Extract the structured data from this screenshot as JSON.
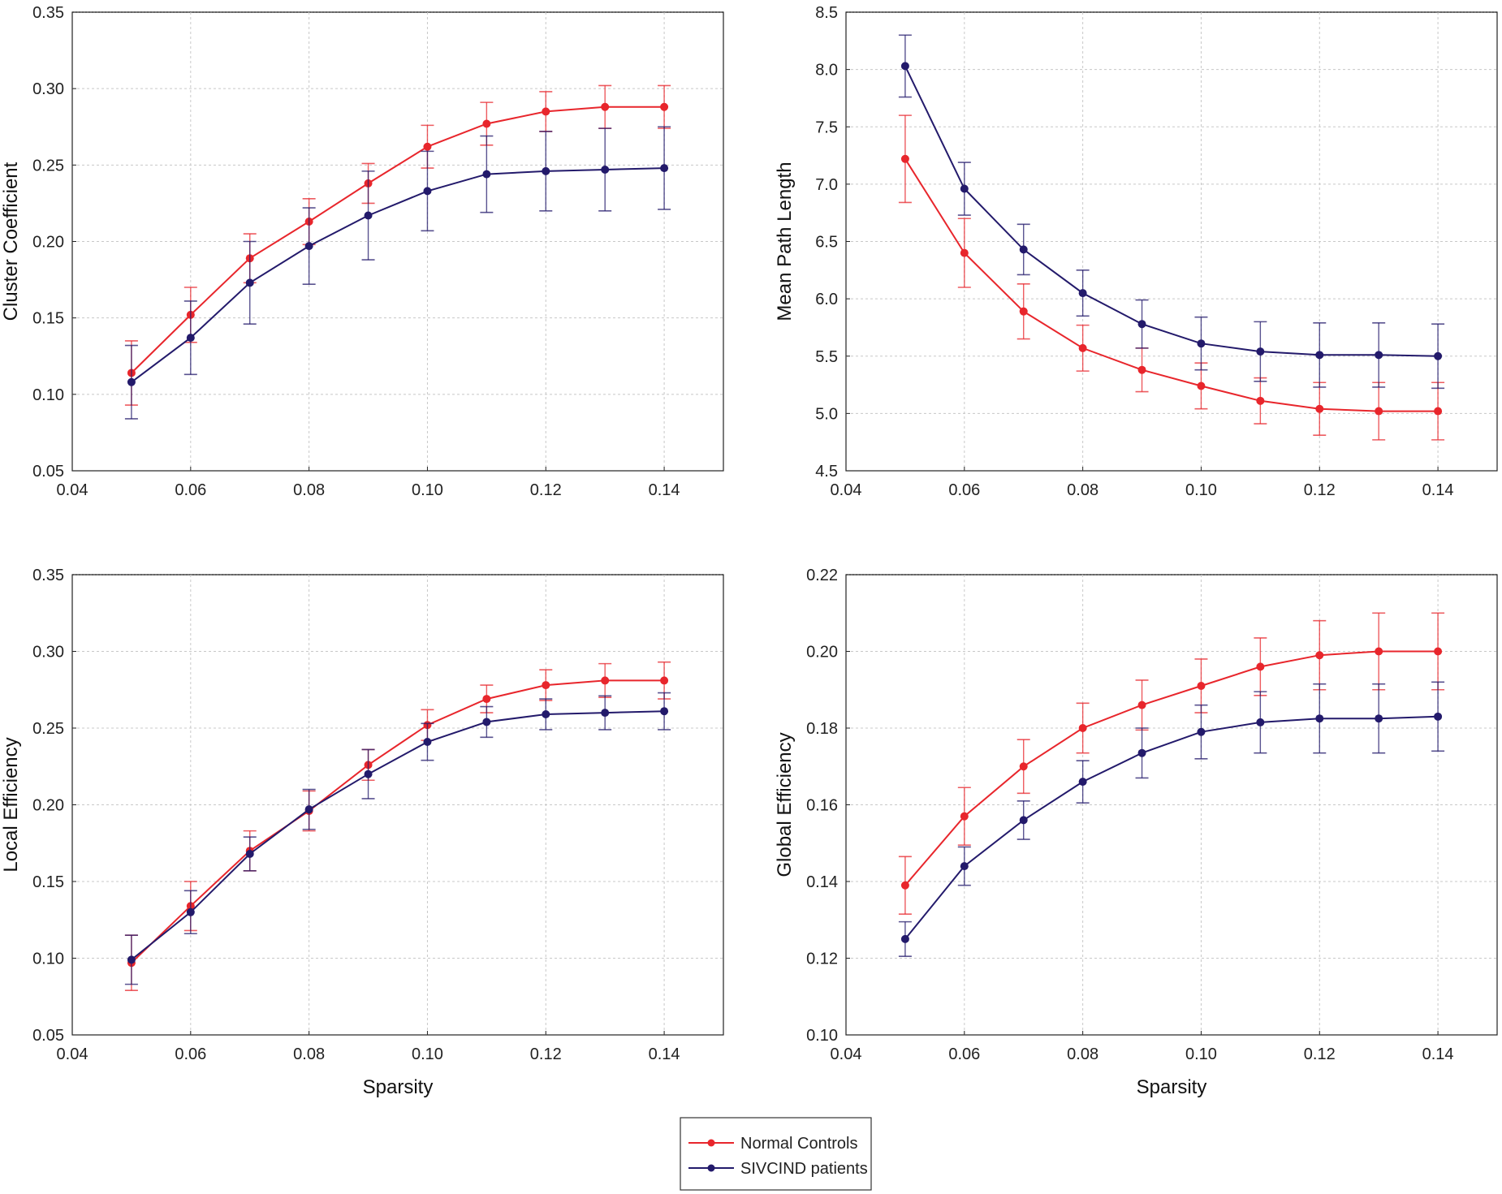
{
  "legend": {
    "items": [
      {
        "label": "Normal Controls",
        "color": "#e8262c"
      },
      {
        "label": "SIVCIND patients",
        "color": "#231a6b"
      }
    ]
  },
  "chart_data": [
    {
      "type": "line",
      "title": "",
      "xlabel": "",
      "ylabel": "Cluster Coefficient",
      "xlim": [
        0.04,
        0.15
      ],
      "ylim": [
        0.05,
        0.35
      ],
      "xticks": [
        "0.04",
        "0.06",
        "0.08",
        "0.10",
        "0.12",
        "0.14"
      ],
      "yticks": [
        "0.05",
        "0.10",
        "0.15",
        "0.20",
        "0.25",
        "0.30",
        "0.35"
      ],
      "grid": true,
      "x": [
        0.05,
        0.06,
        0.07,
        0.08,
        0.09,
        0.1,
        0.11,
        0.12,
        0.13,
        0.14
      ],
      "series": [
        {
          "name": "Normal Controls",
          "color": "#e8262c",
          "values": [
            0.114,
            0.152,
            0.189,
            0.213,
            0.238,
            0.262,
            0.277,
            0.285,
            0.288,
            0.288
          ],
          "errors": [
            0.021,
            0.018,
            0.016,
            0.015,
            0.013,
            0.014,
            0.014,
            0.013,
            0.014,
            0.014
          ]
        },
        {
          "name": "SIVCIND patients",
          "color": "#231a6b",
          "values": [
            0.108,
            0.137,
            0.173,
            0.197,
            0.217,
            0.233,
            0.244,
            0.246,
            0.247,
            0.248
          ],
          "errors": [
            0.024,
            0.024,
            0.027,
            0.025,
            0.029,
            0.026,
            0.025,
            0.026,
            0.027,
            0.027
          ]
        }
      ]
    },
    {
      "type": "line",
      "title": "",
      "xlabel": "",
      "ylabel": "Mean Path Length",
      "xlim": [
        0.04,
        0.15
      ],
      "ylim": [
        4.5,
        8.5
      ],
      "xticks": [
        "0.04",
        "0.06",
        "0.08",
        "0.10",
        "0.12",
        "0.14"
      ],
      "yticks": [
        "4.5",
        "5.0",
        "5.5",
        "6.0",
        "6.5",
        "7.0",
        "7.5",
        "8.0",
        "8.5"
      ],
      "grid": true,
      "x": [
        0.05,
        0.06,
        0.07,
        0.08,
        0.09,
        0.1,
        0.11,
        0.12,
        0.13,
        0.14
      ],
      "series": [
        {
          "name": "Normal Controls",
          "color": "#e8262c",
          "values": [
            7.22,
            6.4,
            5.89,
            5.57,
            5.38,
            5.24,
            5.11,
            5.04,
            5.02,
            5.02
          ],
          "errors": [
            0.38,
            0.3,
            0.24,
            0.2,
            0.19,
            0.2,
            0.2,
            0.23,
            0.25,
            0.25
          ]
        },
        {
          "name": "SIVCIND patients",
          "color": "#231a6b",
          "values": [
            8.03,
            6.96,
            6.43,
            6.05,
            5.78,
            5.61,
            5.54,
            5.51,
            5.51,
            5.5
          ],
          "errors": [
            0.27,
            0.23,
            0.22,
            0.2,
            0.21,
            0.23,
            0.26,
            0.28,
            0.28,
            0.28
          ]
        }
      ]
    },
    {
      "type": "line",
      "title": "",
      "xlabel": "Sparsity",
      "ylabel": "Local Efficiency",
      "xlim": [
        0.04,
        0.15
      ],
      "ylim": [
        0.05,
        0.35
      ],
      "xticks": [
        "0.04",
        "0.06",
        "0.08",
        "0.10",
        "0.12",
        "0.14"
      ],
      "yticks": [
        "0.05",
        "0.10",
        "0.15",
        "0.20",
        "0.25",
        "0.30",
        "0.35"
      ],
      "grid": true,
      "x": [
        0.05,
        0.06,
        0.07,
        0.08,
        0.09,
        0.1,
        0.11,
        0.12,
        0.13,
        0.14
      ],
      "series": [
        {
          "name": "Normal Controls",
          "color": "#e8262c",
          "values": [
            0.097,
            0.134,
            0.17,
            0.196,
            0.226,
            0.252,
            0.269,
            0.278,
            0.281,
            0.281
          ],
          "errors": [
            0.018,
            0.016,
            0.013,
            0.013,
            0.01,
            0.01,
            0.009,
            0.01,
            0.011,
            0.012
          ]
        },
        {
          "name": "SIVCIND patients",
          "color": "#231a6b",
          "values": [
            0.099,
            0.13,
            0.168,
            0.197,
            0.22,
            0.241,
            0.254,
            0.259,
            0.26,
            0.261
          ],
          "errors": [
            0.016,
            0.014,
            0.011,
            0.013,
            0.016,
            0.012,
            0.01,
            0.01,
            0.011,
            0.012
          ]
        }
      ]
    },
    {
      "type": "line",
      "title": "",
      "xlabel": "Sparsity",
      "ylabel": "Global Efficiency",
      "xlim": [
        0.04,
        0.15
      ],
      "ylim": [
        0.1,
        0.22
      ],
      "xticks": [
        "0.04",
        "0.06",
        "0.08",
        "0.10",
        "0.12",
        "0.14"
      ],
      "yticks": [
        "0.10",
        "0.12",
        "0.14",
        "0.16",
        "0.18",
        "0.20",
        "0.22"
      ],
      "grid": true,
      "x": [
        0.05,
        0.06,
        0.07,
        0.08,
        0.09,
        0.1,
        0.11,
        0.12,
        0.13,
        0.14
      ],
      "series": [
        {
          "name": "Normal Controls",
          "color": "#e8262c",
          "values": [
            0.139,
            0.157,
            0.17,
            0.18,
            0.186,
            0.191,
            0.196,
            0.199,
            0.2,
            0.2
          ],
          "errors": [
            0.0075,
            0.0075,
            0.007,
            0.0065,
            0.0065,
            0.007,
            0.0075,
            0.009,
            0.01,
            0.01
          ]
        },
        {
          "name": "SIVCIND patients",
          "color": "#231a6b",
          "values": [
            0.125,
            0.144,
            0.156,
            0.166,
            0.1735,
            0.179,
            0.1815,
            0.1825,
            0.1825,
            0.183
          ],
          "errors": [
            0.0045,
            0.005,
            0.005,
            0.0055,
            0.0065,
            0.007,
            0.008,
            0.009,
            0.009,
            0.009
          ]
        }
      ]
    }
  ]
}
